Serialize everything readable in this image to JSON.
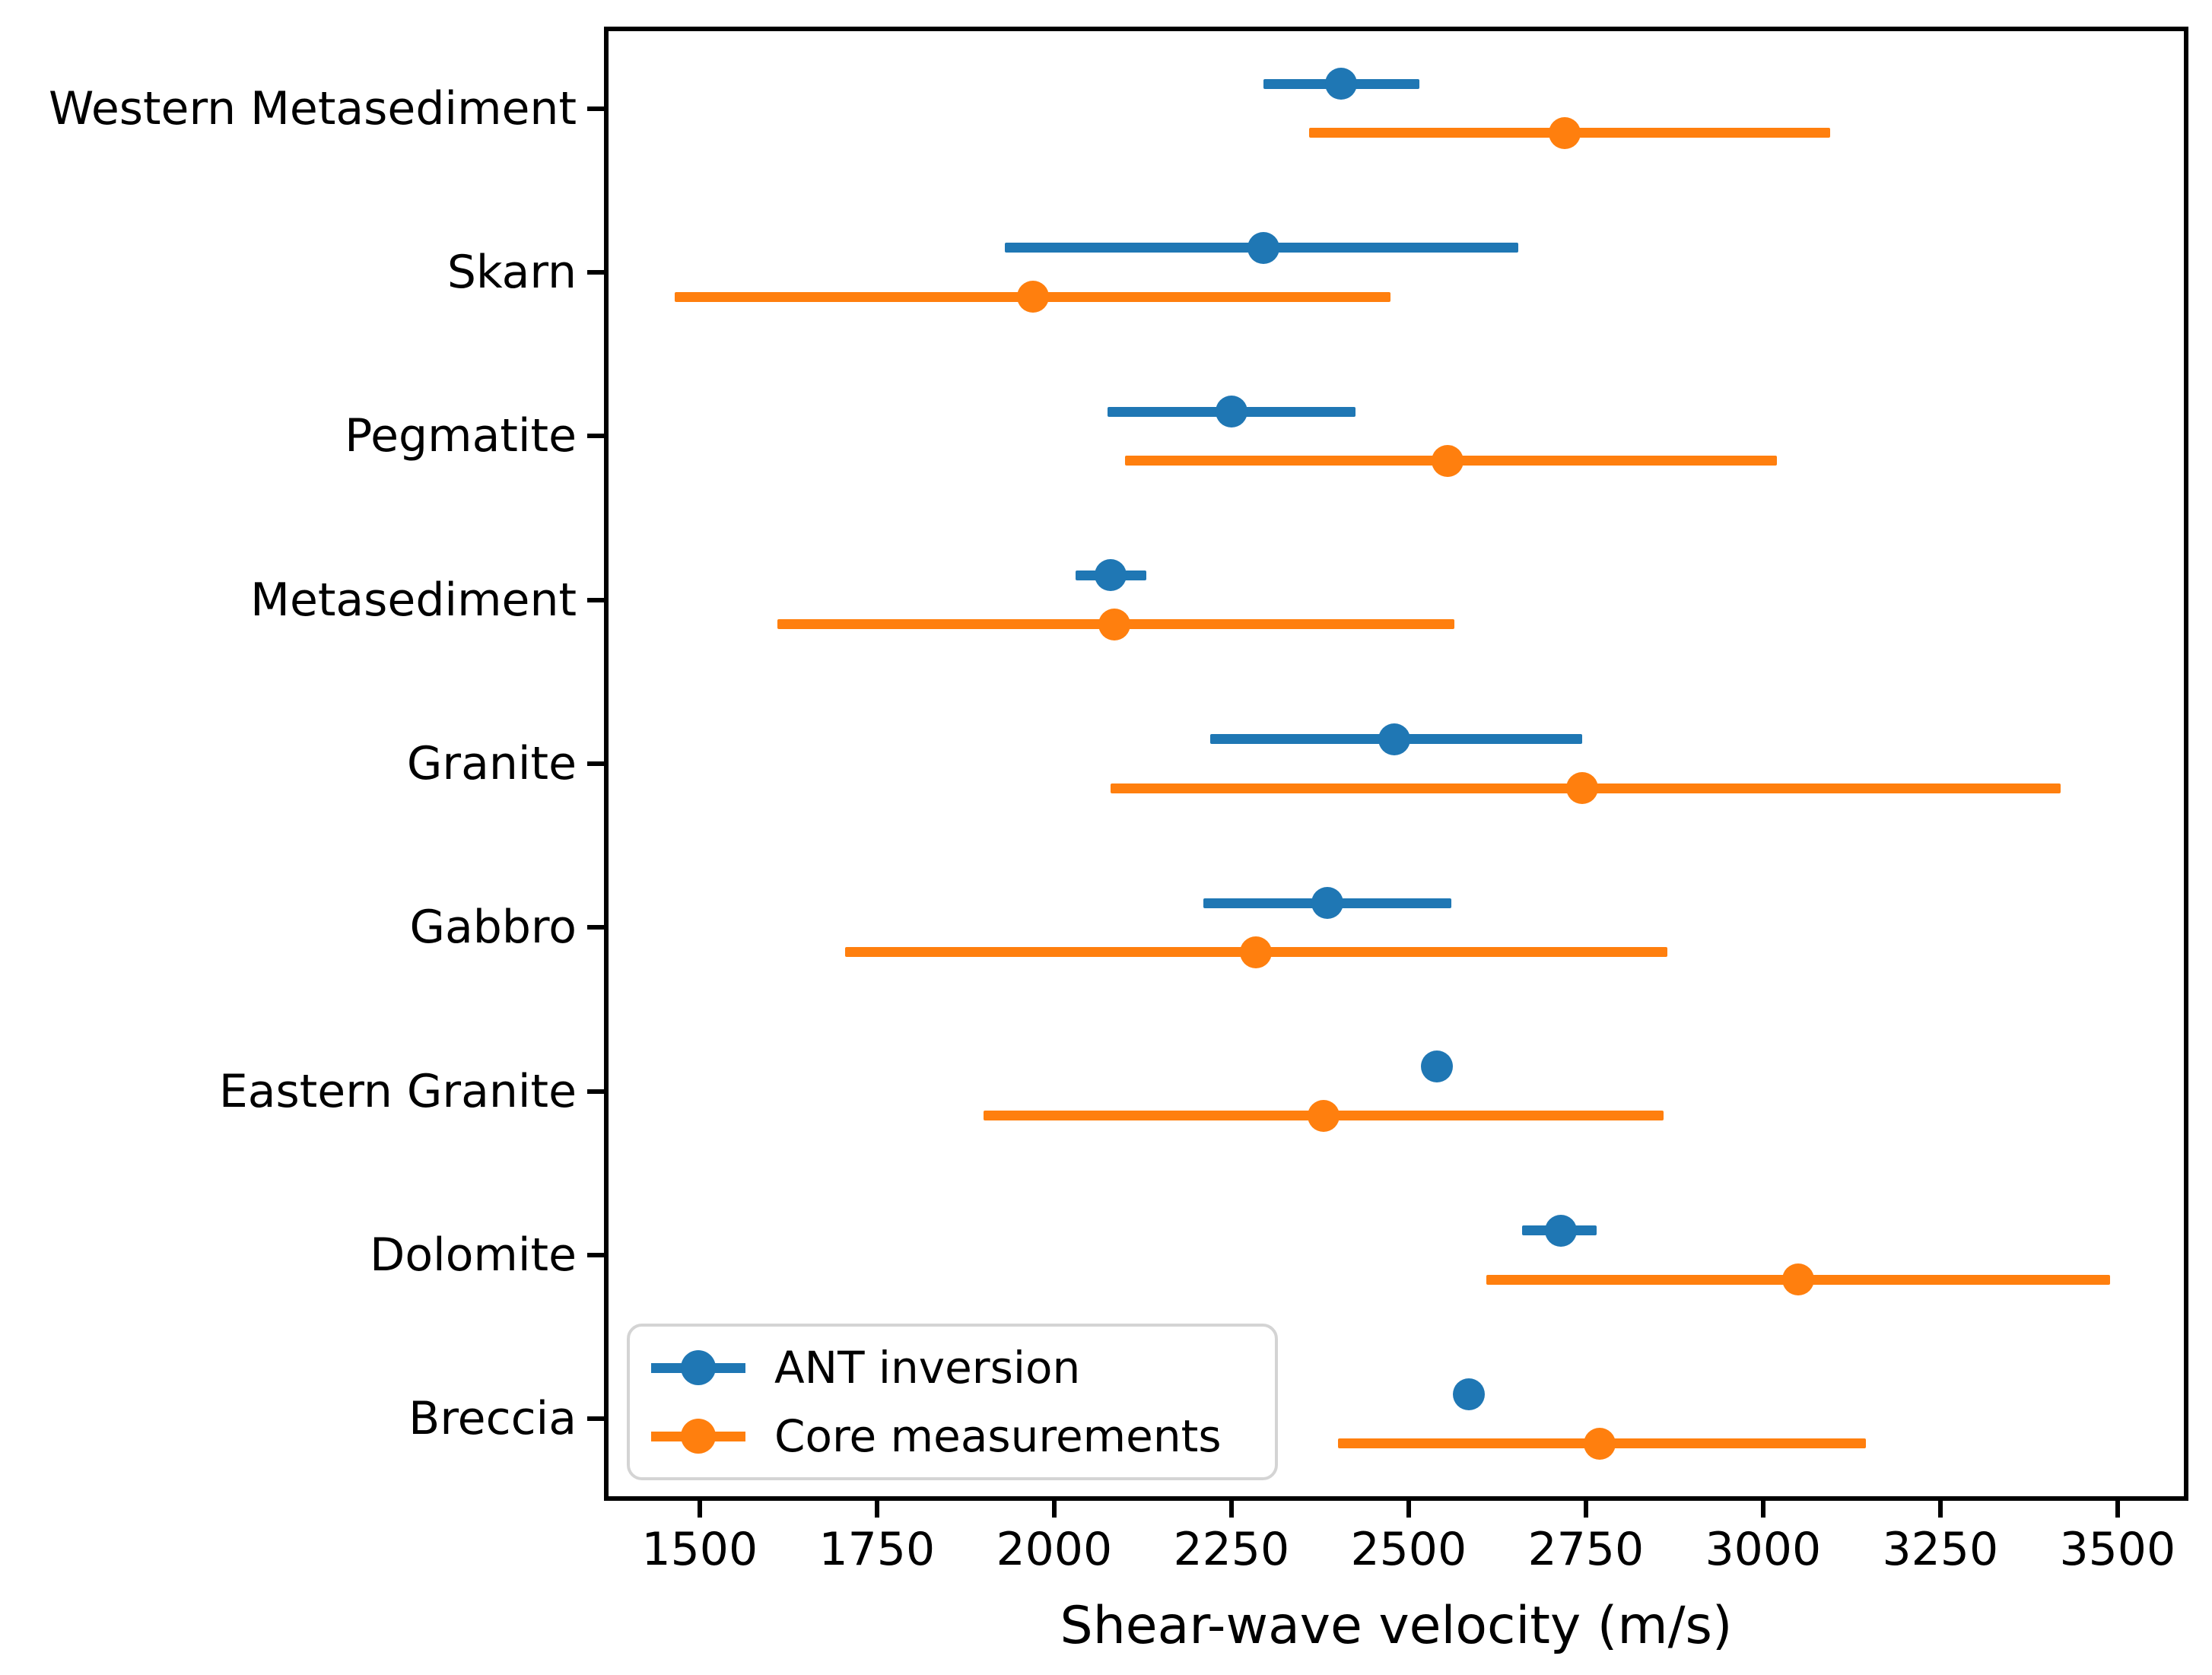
{
  "chart_data": {
    "type": "scatter",
    "subtype": "horizontal-errorbar",
    "title": "",
    "xlabel": "Shear-wave velocity (m/s)",
    "ylabel": "",
    "xlim": [
      1365,
      3600
    ],
    "xticks": [
      "1500",
      "1750",
      "2000",
      "2250",
      "2500",
      "2750",
      "3000",
      "3250",
      "3500"
    ],
    "grid": false,
    "legend_position": "lower left",
    "categories": [
      "Western Metasediment",
      "Skarn",
      "Pegmatite",
      "Metasediment",
      "Granite",
      "Gabbro",
      "Eastern Granite",
      "Dolomite",
      "Breccia"
    ],
    "series": [
      {
        "name": "ANT inversion",
        "color": "#1f77b4",
        "row_offset": -0.15,
        "values": [
          2405,
          2295,
          2250,
          2080,
          2480,
          2385,
          2540,
          2715,
          2585
        ],
        "err_lo": [
          2295,
          1930,
          2075,
          2030,
          2220,
          2210,
          2540,
          2660,
          2585
        ],
        "err_hi": [
          2515,
          2655,
          2425,
          2130,
          2745,
          2560,
          2540,
          2765,
          2585
        ]
      },
      {
        "name": "Core measurements",
        "color": "#ff7f0e",
        "row_offset": 0.15,
        "values": [
          2720,
          1970,
          2555,
          2085,
          2745,
          2285,
          2380,
          3050,
          2770
        ],
        "err_lo": [
          2360,
          1465,
          2100,
          1610,
          2080,
          1705,
          1900,
          2610,
          2400
        ],
        "err_hi": [
          3095,
          2475,
          3020,
          2565,
          3420,
          2865,
          2860,
          3490,
          3145
        ]
      }
    ]
  },
  "legend": {
    "entries": [
      "ANT inversion",
      "Core measurements"
    ]
  }
}
